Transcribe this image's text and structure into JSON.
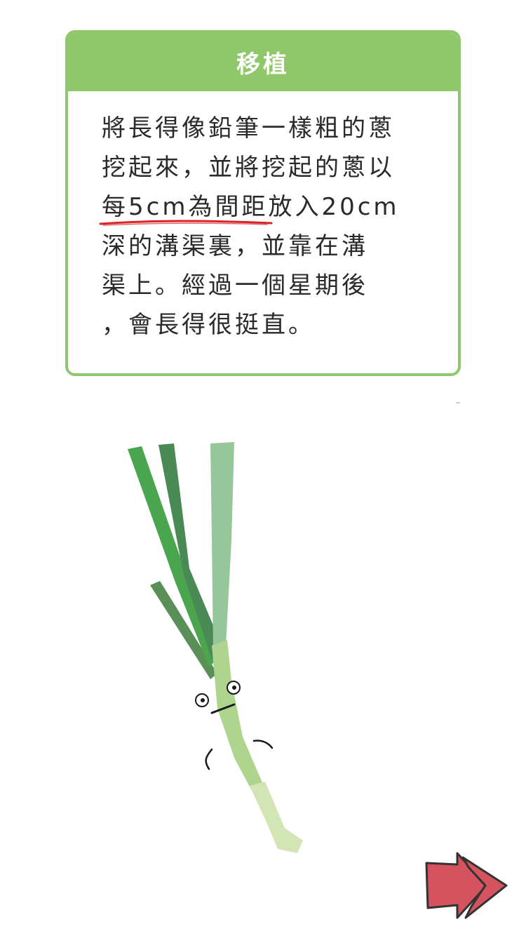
{
  "card": {
    "title": "移植",
    "lines": [
      "將長得像鉛筆一樣粗的蔥",
      "挖起來，並將挖起的蔥以",
      "深的溝渠裏，並靠在溝",
      "渠上。經過一個星期後",
      "，會長得很挺直。"
    ],
    "highlight_text": "每5cm為間距",
    "line3_rest": "放入20cm"
  },
  "colors": {
    "accent": "#8ec86a",
    "underline": "#d9252a",
    "next_button": "#d4535f"
  },
  "icons": {
    "illustration": "green-onion-character",
    "next": "double-arrow-right-icon"
  }
}
